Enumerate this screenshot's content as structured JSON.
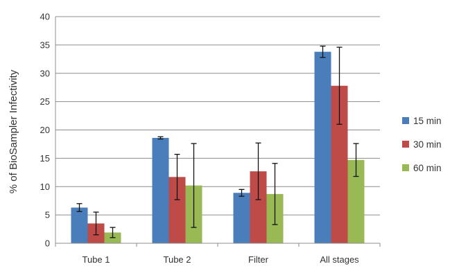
{
  "chart_data": {
    "type": "bar",
    "title": "",
    "xlabel": "",
    "ylabel": "% of BioSampler Infectivity",
    "categories": [
      "Tube 1",
      "Tube 2",
      "Filter",
      "All stages"
    ],
    "ylim": [
      0,
      40
    ],
    "yticks": [
      0,
      5,
      10,
      15,
      20,
      25,
      30,
      35,
      40
    ],
    "grid": true,
    "legend_position": "right",
    "series": [
      {
        "name": "15 min",
        "color": "#4a7ebb",
        "values": [
          6.3,
          18.6,
          8.9,
          33.8
        ],
        "errors": [
          0.7,
          0.2,
          0.6,
          1.0
        ]
      },
      {
        "name": "30 min",
        "color": "#be4b48",
        "values": [
          3.5,
          11.7,
          12.7,
          27.8
        ],
        "errors": [
          2.0,
          4.0,
          5.0,
          6.8
        ]
      },
      {
        "name": "60 min",
        "color": "#98b954",
        "values": [
          1.9,
          10.2,
          8.7,
          14.7
        ],
        "errors": [
          0.9,
          7.4,
          5.4,
          2.9
        ]
      }
    ]
  }
}
